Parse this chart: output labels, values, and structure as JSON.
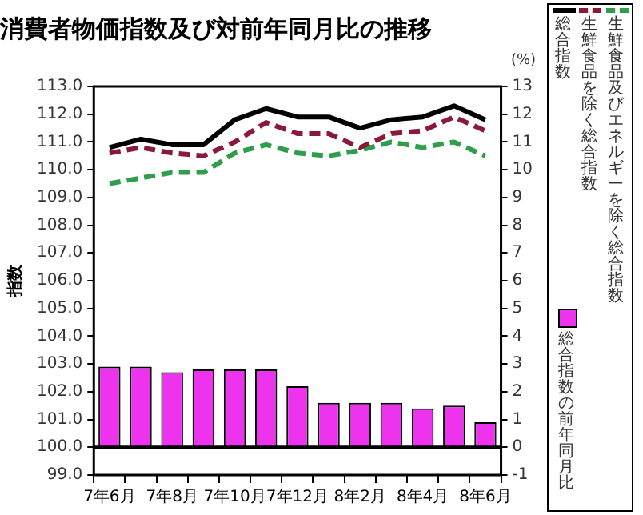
{
  "chart_data": {
    "type": "line",
    "title": "消費者物価指数及び対前年同月比の推移",
    "ylabel": "指数",
    "y2label": "(%)",
    "categories": [
      "7年6月",
      null,
      "7年8月",
      null,
      "7年10月",
      null,
      "7年12月",
      null,
      "8年2月",
      null,
      "8年4月",
      null,
      "8年6月"
    ],
    "series": [
      {
        "name": "総合指数",
        "color": "#000000",
        "line_style": "solid",
        "values": [
          110.8,
          111.1,
          110.9,
          110.9,
          111.8,
          112.2,
          111.9,
          111.9,
          111.5,
          111.8,
          111.9,
          112.3,
          111.8
        ]
      },
      {
        "name": "生鮮食品を除く総合指数",
        "color": "#8b1a3a",
        "line_style": "dashed",
        "values": [
          110.6,
          110.8,
          110.6,
          110.5,
          111.0,
          111.7,
          111.3,
          111.3,
          110.8,
          111.3,
          111.4,
          111.9,
          111.4
        ]
      },
      {
        "name": "生鮮食品及びエネルギーを除く総合指数",
        "color": "#2e9e4a",
        "line_style": "dashed",
        "values": [
          109.5,
          109.7,
          109.9,
          109.9,
          110.6,
          110.9,
          110.6,
          110.5,
          110.7,
          111.0,
          110.8,
          111.0,
          110.5
        ]
      },
      {
        "name": "総合指数の前年同月比",
        "type": "bar",
        "axis": "y2",
        "color": "#ee33ee",
        "values": [
          2.9,
          2.9,
          2.7,
          2.8,
          2.8,
          2.8,
          2.2,
          1.6,
          1.6,
          1.6,
          1.4,
          1.5,
          0.9
        ]
      }
    ],
    "ylim": [
      99,
      113
    ],
    "yticks": [
      {
        "value": 99,
        "label": "99.0"
      },
      {
        "value": 100,
        "label": "100.0"
      },
      {
        "value": 101,
        "label": "101.0"
      },
      {
        "value": 102,
        "label": "102.0"
      },
      {
        "value": 103,
        "label": "103.0"
      },
      {
        "value": 104,
        "label": "104.0"
      },
      {
        "value": 105,
        "label": "105.0"
      },
      {
        "value": 106,
        "label": "106.0"
      },
      {
        "value": 107,
        "label": "107.0"
      },
      {
        "value": 108,
        "label": "108.0"
      },
      {
        "value": 109,
        "label": "109.0"
      },
      {
        "value": 110,
        "label": "110.0"
      },
      {
        "value": 111,
        "label": "111.0"
      },
      {
        "value": 112,
        "label": "112.0"
      },
      {
        "value": 113,
        "label": "113.0"
      }
    ],
    "y2lim": [
      -1,
      13
    ],
    "y2ticks": [
      -1,
      0,
      1,
      2,
      3,
      4,
      5,
      6,
      7,
      8,
      9,
      10,
      11,
      12,
      13
    ],
    "ref_lines": [
      {
        "axis": "y2",
        "value": 0,
        "color": "#000000"
      }
    ],
    "grid": false,
    "legend": "right",
    "marker": "none"
  }
}
